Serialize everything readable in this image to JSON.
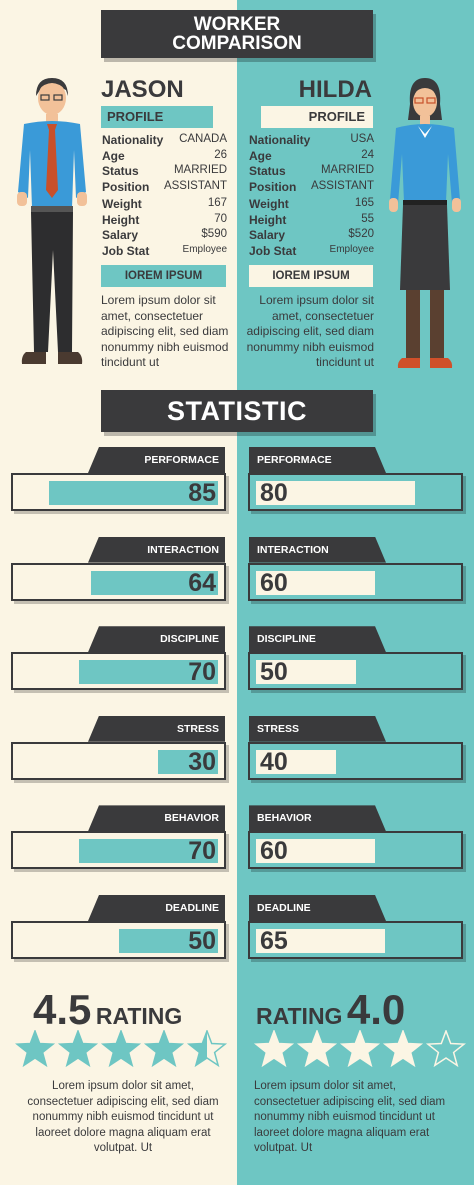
{
  "title": {
    "line1": "WORKER",
    "line2": "COMPARISON"
  },
  "colors": {
    "teal": "#6ec6c3",
    "cream": "#fbf5e4",
    "dark": "#3a3a3c"
  },
  "left": {
    "name": "JASON",
    "profile_label": "PROFILE",
    "rows": [
      {
        "k": "Nationality",
        "v": "CANADA"
      },
      {
        "k": "Age",
        "v": "26"
      },
      {
        "k": "Status",
        "v": "MARRIED"
      },
      {
        "k": "Position",
        "v": "ASSISTANT"
      },
      {
        "k": "Weight",
        "v": "167"
      },
      {
        "k": "Height",
        "v": "70"
      },
      {
        "k": "Salary",
        "v": "$590"
      },
      {
        "k": "Job Stat",
        "v": "Employee"
      }
    ],
    "section_label": "IOREM IPSUM",
    "lorem": "Lorem ipsum dolor sit amet, consectetuer adipiscing elit, sed diam nonummy nibh euismod tincidunt ut",
    "rating_value": "4.5",
    "rating_word": "RATING",
    "stars": 4.5,
    "footer": "Lorem ipsum dolor sit amet, consectetuer adipiscing elit, sed diam nonummy nibh euismod tincidunt ut laoreet dolore magna aliquam erat volutpat. Ut"
  },
  "right": {
    "name": "HILDA",
    "profile_label": "PROFILE",
    "rows": [
      {
        "k": "Nationality",
        "v": "USA"
      },
      {
        "k": "Age",
        "v": "24"
      },
      {
        "k": "Status",
        "v": "MARRIED"
      },
      {
        "k": "Position",
        "v": "ASSISTANT"
      },
      {
        "k": "Weight",
        "v": "165"
      },
      {
        "k": "Height",
        "v": "55"
      },
      {
        "k": "Salary",
        "v": "$520"
      },
      {
        "k": "Job Stat",
        "v": "Employee"
      }
    ],
    "section_label": "IOREM IPSUM",
    "lorem": "Lorem ipsum dolor sit amet, consectetuer adipiscing elit, sed diam nonummy nibh euismod tincidunt ut",
    "rating_value": "4.0",
    "rating_word": "RATING",
    "stars": 4,
    "footer": "Lorem ipsum dolor sit amet, consectetuer adipiscing elit, sed diam nonummy nibh euismod tincidunt ut laoreet dolore magna aliquam erat volutpat. Ut"
  },
  "statistic_title": "STATISTIC",
  "stats": [
    {
      "label": "PERFORMACE",
      "left": 85,
      "right": 80
    },
    {
      "label": "INTERACTION",
      "left": 64,
      "right": 60
    },
    {
      "label": "DISCIPLINE",
      "left": 70,
      "right": 50
    },
    {
      "label": "STRESS",
      "left": 30,
      "right": 40
    },
    {
      "label": "BEHAVIOR",
      "left": 70,
      "right": 60
    },
    {
      "label": "DEADLINE",
      "left": 50,
      "right": 65
    }
  ],
  "icons": {
    "jason": "male-worker-figure",
    "hilda": "female-worker-figure",
    "star": "star-icon"
  }
}
